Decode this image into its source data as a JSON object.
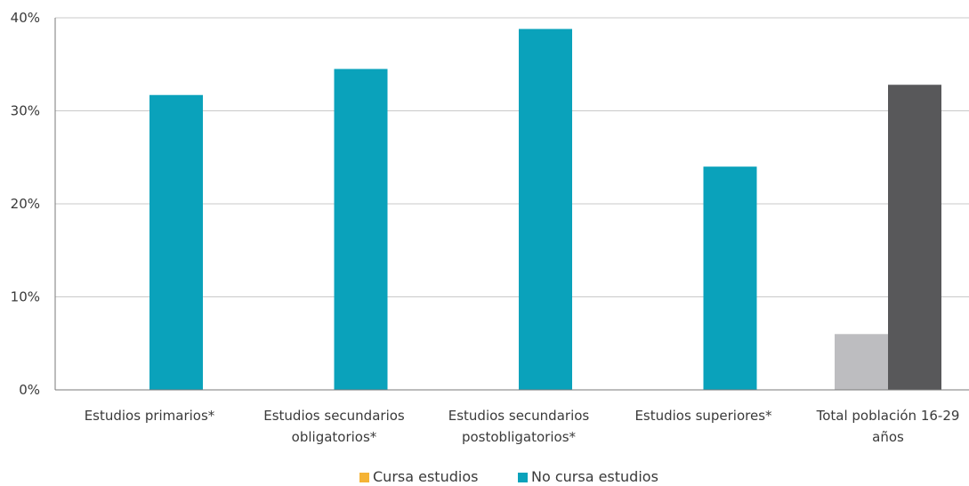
{
  "chart_data": {
    "type": "bar",
    "title": "",
    "xlabel": "",
    "ylabel": "",
    "ylim": [
      0,
      40
    ],
    "yticks": [
      0,
      10,
      20,
      30,
      40
    ],
    "ytick_labels": [
      "0%",
      "10%",
      "20%",
      "30%",
      "40%"
    ],
    "grid": true,
    "legend_position": "bottom-center",
    "categories": [
      {
        "line1": "Estudios primarios*",
        "line2": ""
      },
      {
        "line1": "Estudios secundarios",
        "line2": "obligatorios*"
      },
      {
        "line1": "Estudios secundarios",
        "line2": "postobligatorios*"
      },
      {
        "line1": "Estudios superiores*",
        "line2": ""
      },
      {
        "line1": "Total población 16-29",
        "line2": "años"
      }
    ],
    "series": [
      {
        "name": "Cursa estudios",
        "color": "#f5b335",
        "values": [
          null,
          null,
          null,
          null,
          6.0
        ]
      },
      {
        "name": "No cursa estudios",
        "color": "#0aa2bb",
        "values": [
          31.7,
          34.5,
          38.8,
          24.0,
          32.8
        ]
      }
    ],
    "total_colors": {
      "Cursa estudios": "#bdbdc0",
      "No cursa estudios": "#58585a"
    }
  }
}
